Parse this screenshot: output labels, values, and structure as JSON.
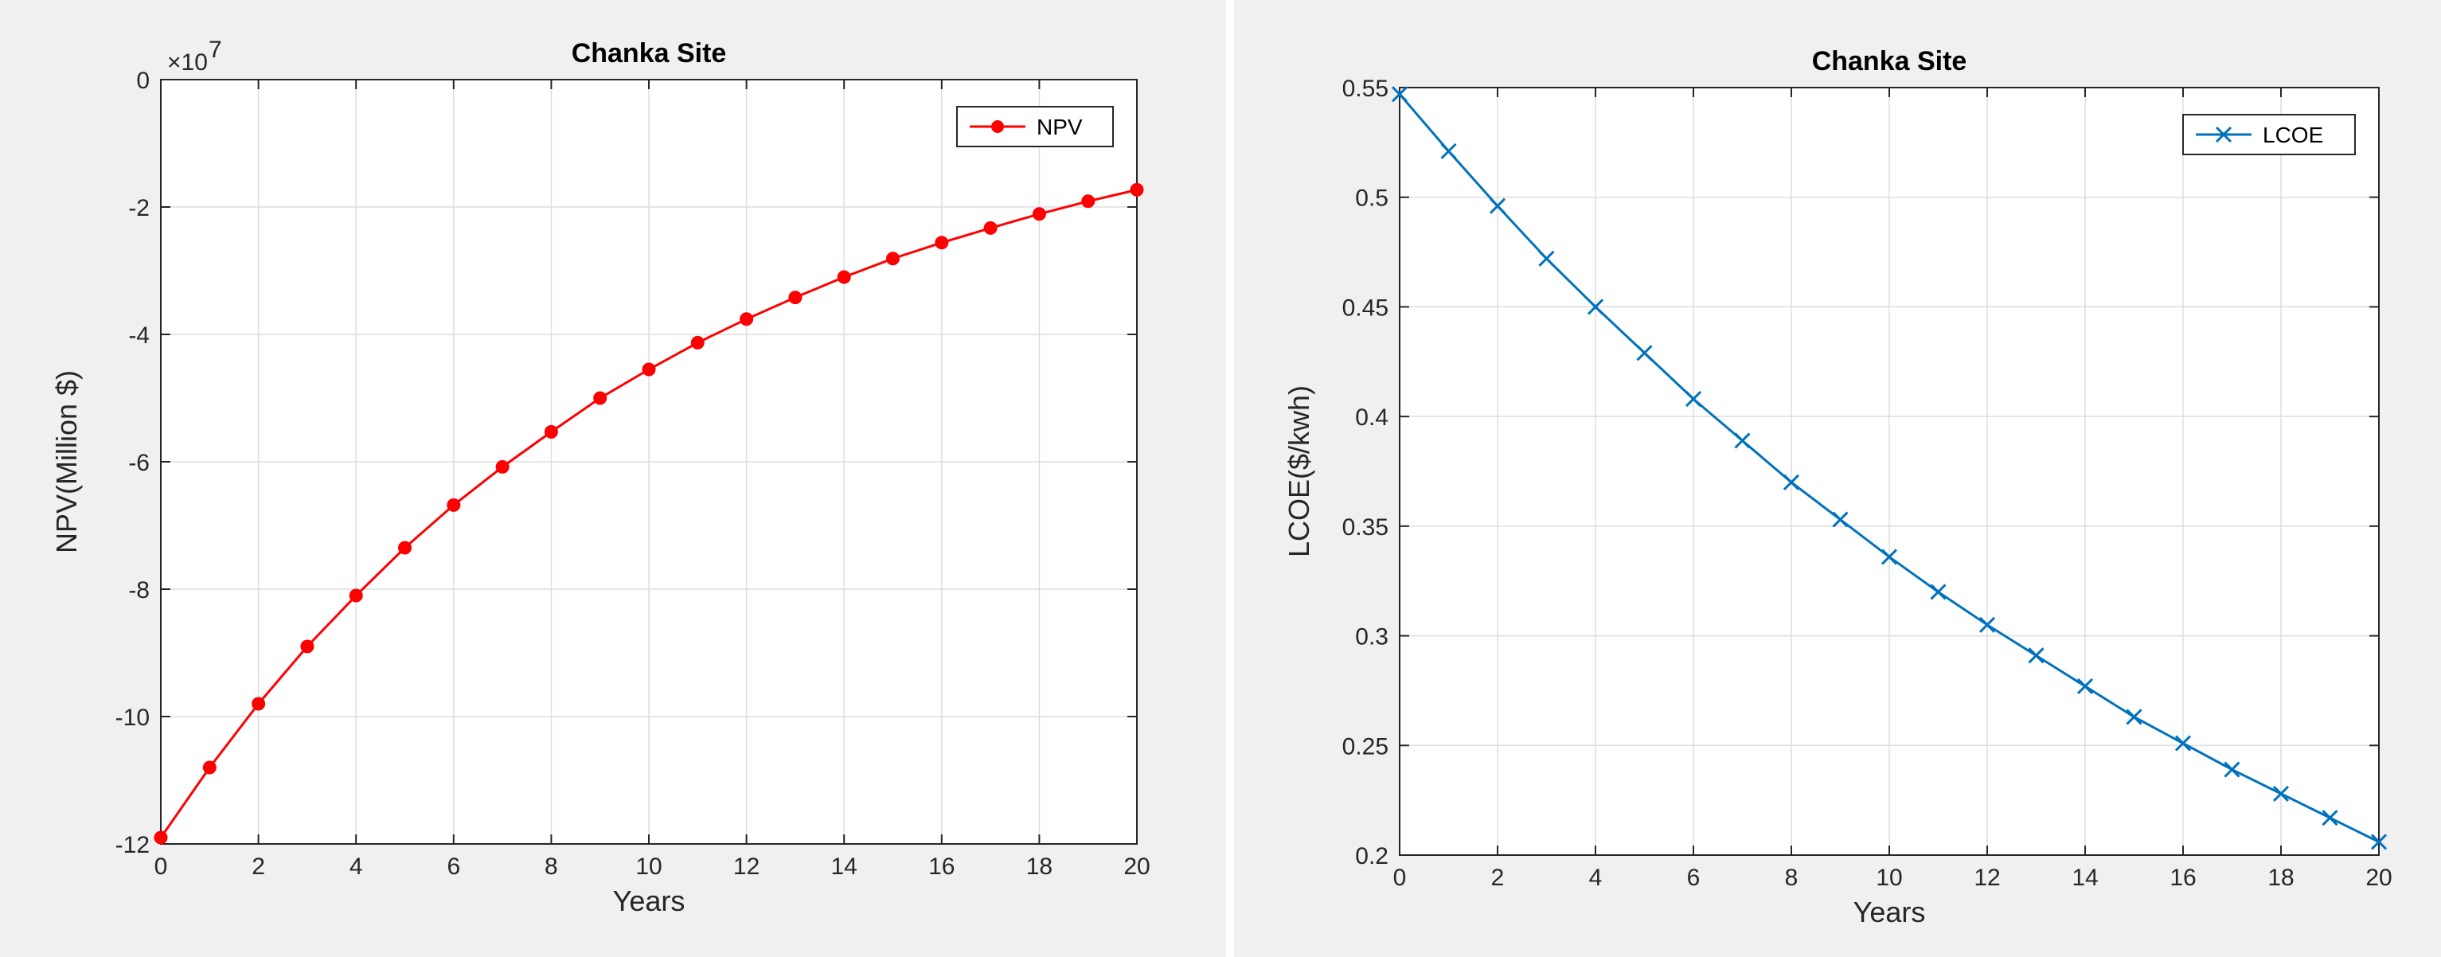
{
  "chart_data": [
    {
      "type": "line",
      "title": "Chanka Site",
      "xlabel": "Years",
      "ylabel": "NPV(Million $)",
      "y_exponent_label": "×10",
      "y_exponent_power": "7",
      "xlim": [
        0,
        20
      ],
      "ylim": [
        -12,
        0
      ],
      "y_multiplier": 10000000,
      "x_ticks": [
        0,
        2,
        4,
        6,
        8,
        10,
        12,
        14,
        16,
        18,
        20
      ],
      "y_ticks": [
        0,
        -2,
        -4,
        -6,
        -8,
        -10,
        -12
      ],
      "grid": true,
      "legend_position": "top-right",
      "series": [
        {
          "name": "NPV",
          "color": "#ff0000",
          "marker": "filled-circle",
          "x": [
            0,
            1,
            2,
            3,
            4,
            5,
            6,
            7,
            8,
            9,
            10,
            11,
            12,
            13,
            14,
            15,
            16,
            17,
            18,
            19,
            20
          ],
          "values": [
            -11.9,
            -10.8,
            -9.8,
            -8.9,
            -8.1,
            -7.35,
            -6.68,
            -6.08,
            -5.53,
            -5.0,
            -4.55,
            -4.13,
            -3.76,
            -3.42,
            -3.1,
            -2.81,
            -2.56,
            -2.33,
            -2.11,
            -1.91,
            -1.73
          ]
        }
      ]
    },
    {
      "type": "line",
      "title": "Chanka Site",
      "xlabel": "Years",
      "ylabel": "LCOE($/kwh)",
      "xlim": [
        0,
        20
      ],
      "ylim": [
        0.2,
        0.55
      ],
      "x_ticks": [
        0,
        2,
        4,
        6,
        8,
        10,
        12,
        14,
        16,
        18,
        20
      ],
      "y_ticks": [
        0.55,
        0.5,
        0.45,
        0.4,
        0.35,
        0.3,
        0.25,
        0.2
      ],
      "grid": true,
      "legend_position": "top-right",
      "series": [
        {
          "name": "LCOE",
          "color": "#0072bd",
          "marker": "x",
          "x": [
            0,
            1,
            2,
            3,
            4,
            5,
            6,
            7,
            8,
            9,
            10,
            11,
            12,
            13,
            14,
            15,
            16,
            17,
            18,
            19,
            20
          ],
          "values": [
            0.547,
            0.521,
            0.496,
            0.472,
            0.45,
            0.429,
            0.408,
            0.389,
            0.37,
            0.353,
            0.336,
            0.32,
            0.305,
            0.291,
            0.277,
            0.263,
            0.251,
            0.239,
            0.228,
            0.217,
            0.206
          ]
        }
      ]
    }
  ]
}
